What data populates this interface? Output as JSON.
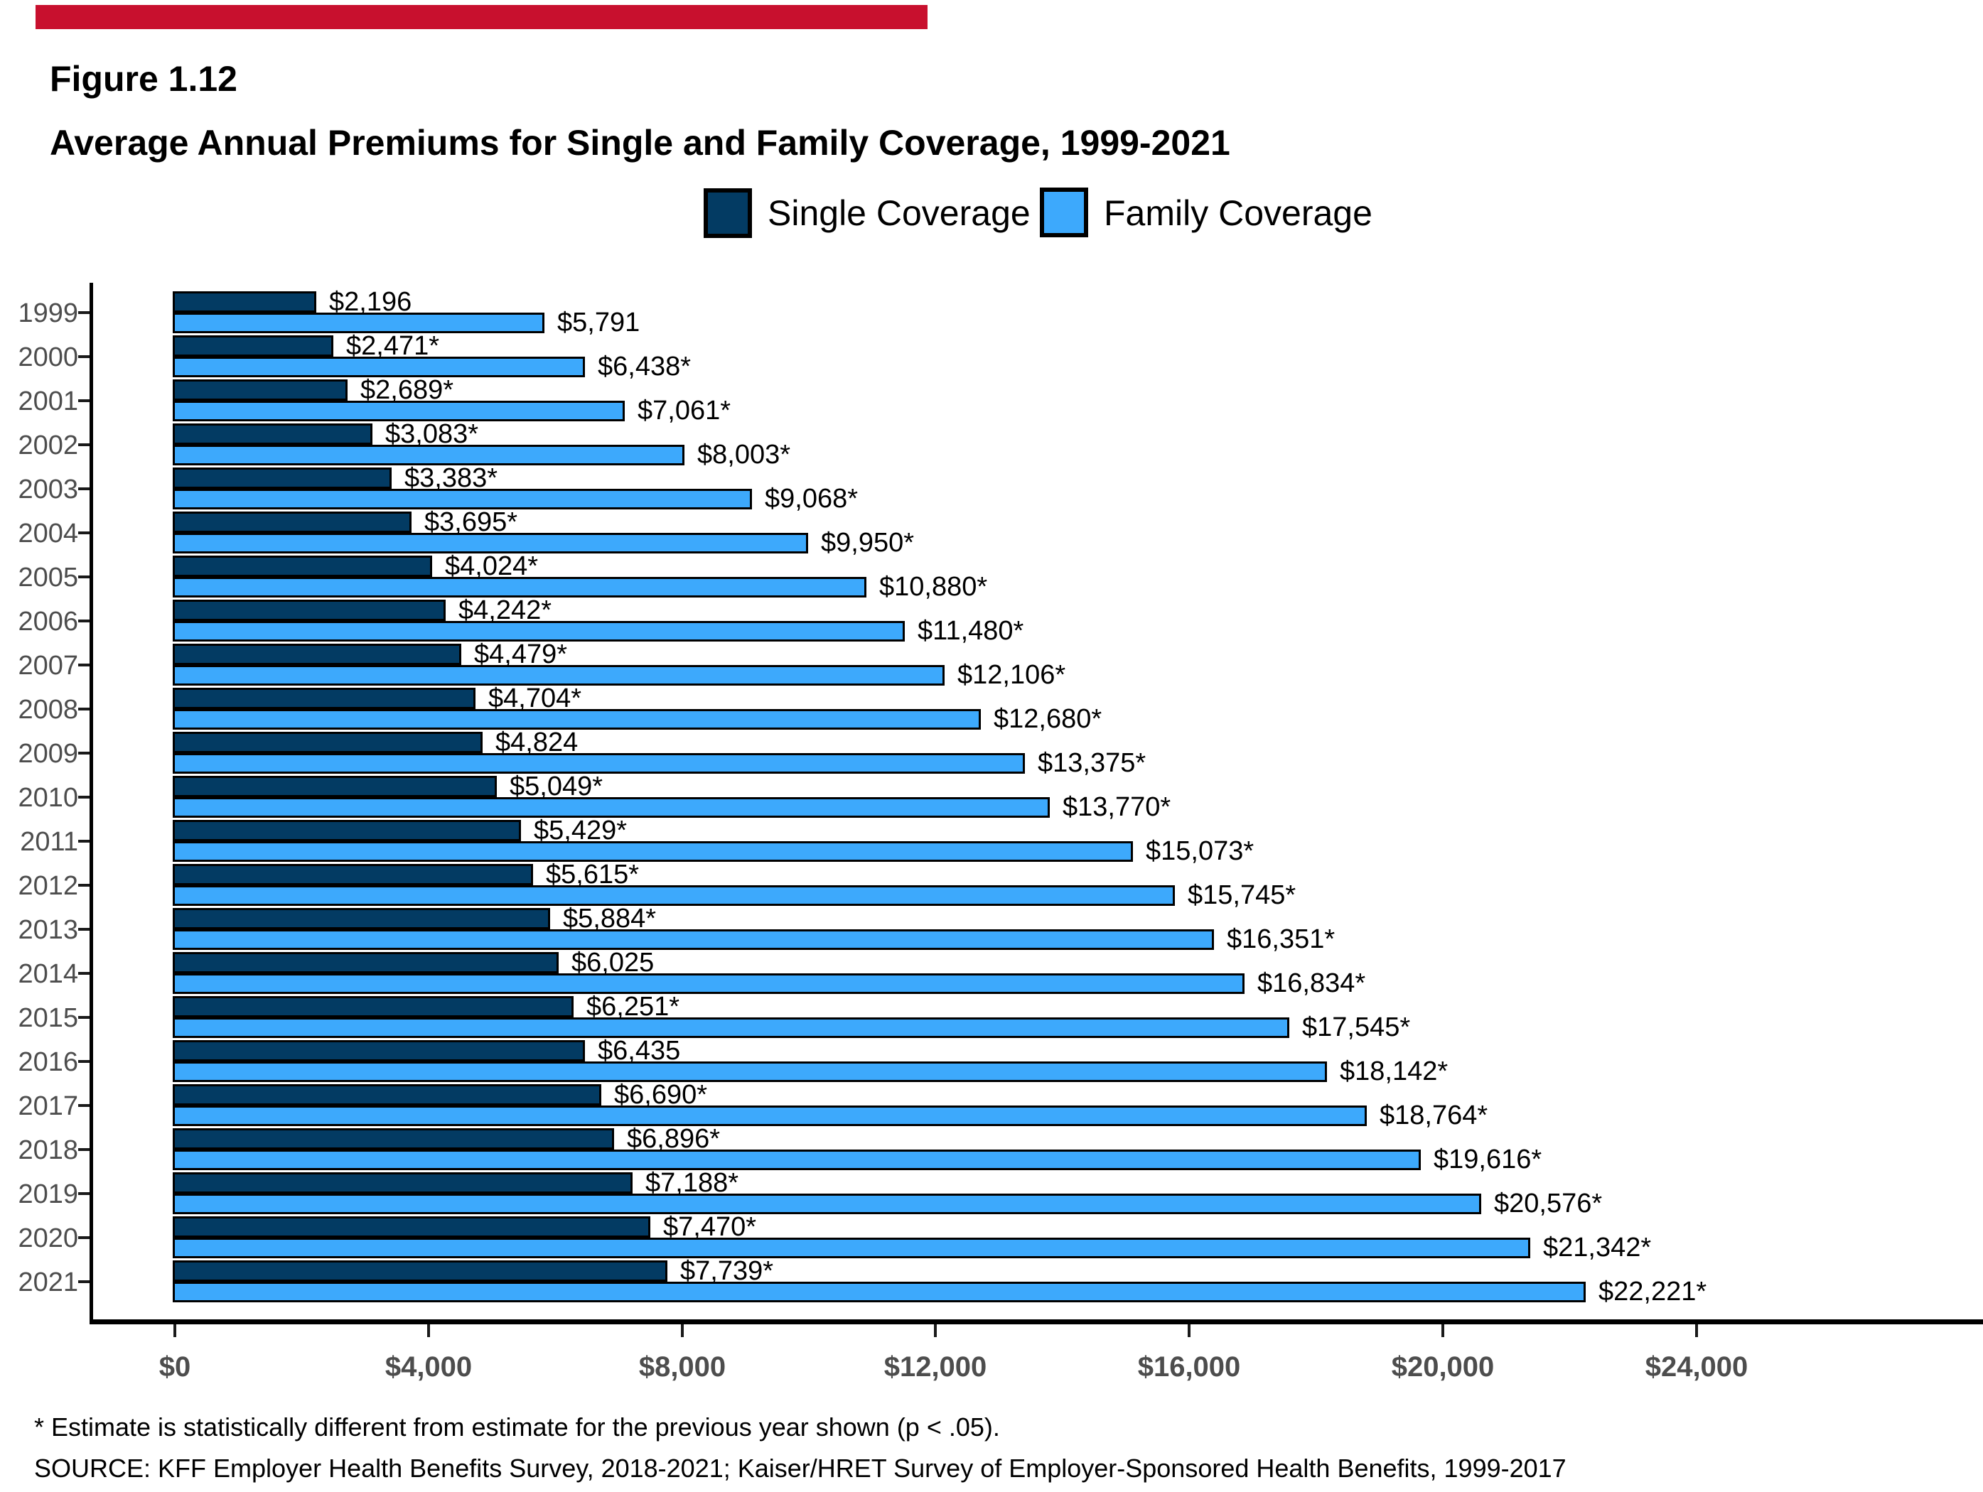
{
  "accent_bar": {
    "color": "#C8102E"
  },
  "figure": {
    "label": "Figure 1.12",
    "title": "Average Annual Premiums for Single and Family Coverage, 1999-2021"
  },
  "legend": {
    "items": [
      {
        "label": "Single Coverage",
        "color": "#033B63"
      },
      {
        "label": "Family Coverage",
        "color": "#3DA9FC"
      }
    ]
  },
  "chart_data": {
    "type": "bar",
    "orientation": "horizontal",
    "title": "Average Annual Premiums for Single and Family Coverage, 1999-2021",
    "categories": [
      "1999",
      "2000",
      "2001",
      "2002",
      "2003",
      "2004",
      "2005",
      "2006",
      "2007",
      "2008",
      "2009",
      "2010",
      "2011",
      "2012",
      "2013",
      "2014",
      "2015",
      "2016",
      "2017",
      "2018",
      "2019",
      "2020",
      "2021"
    ],
    "series": [
      {
        "name": "Single Coverage",
        "color": "#033B63",
        "values": [
          2196,
          2471,
          2689,
          3083,
          3383,
          3695,
          4024,
          4242,
          4479,
          4704,
          4824,
          5049,
          5429,
          5615,
          5884,
          6025,
          6251,
          6435,
          6690,
          6896,
          7188,
          7470,
          7739
        ],
        "labels": [
          "$2,196",
          "$2,471*",
          "$2,689*",
          "$3,083*",
          "$3,383*",
          "$3,695*",
          "$4,024*",
          "$4,242*",
          "$4,479*",
          "$4,704*",
          "$4,824",
          "$5,049*",
          "$5,429*",
          "$5,615*",
          "$5,884*",
          "$6,025",
          "$6,251*",
          "$6,435",
          "$6,690*",
          "$6,896*",
          "$7,188*",
          "$7,470*",
          "$7,739*"
        ]
      },
      {
        "name": "Family Coverage",
        "color": "#3DA9FC",
        "values": [
          5791,
          6438,
          7061,
          8003,
          9068,
          9950,
          10880,
          11480,
          12106,
          12680,
          13375,
          13770,
          15073,
          15745,
          16351,
          16834,
          17545,
          18142,
          18764,
          19616,
          20576,
          21342,
          22221
        ],
        "labels": [
          "$5,791",
          "$6,438*",
          "$7,061*",
          "$8,003*",
          "$9,068*",
          "$9,950*",
          "$10,880*",
          "$11,480*",
          "$12,106*",
          "$12,680*",
          "$13,375*",
          "$13,770*",
          "$15,073*",
          "$15,745*",
          "$16,351*",
          "$16,834*",
          "$17,545*",
          "$18,142*",
          "$18,764*",
          "$19,616*",
          "$20,576*",
          "$21,342*",
          "$22,221*"
        ]
      }
    ],
    "x_ticks": [
      "$0",
      "$4,000",
      "$8,000",
      "$12,000",
      "$16,000",
      "$20,000",
      "$24,000"
    ],
    "x_tick_values": [
      0,
      4000,
      8000,
      12000,
      16000,
      20000,
      24000
    ],
    "xlim": [
      0,
      24000
    ],
    "grid": false,
    "bar_outline_color": "#000000",
    "legend_position": "top-center"
  },
  "footnotes": {
    "asterisk": "* Estimate is statistically different from estimate for the previous year shown (p < .05).",
    "source": "SOURCE: KFF Employer Health Benefits Survey, 2018-2021; Kaiser/HRET Survey of Employer-Sponsored Health Benefits, 1999-2017"
  }
}
